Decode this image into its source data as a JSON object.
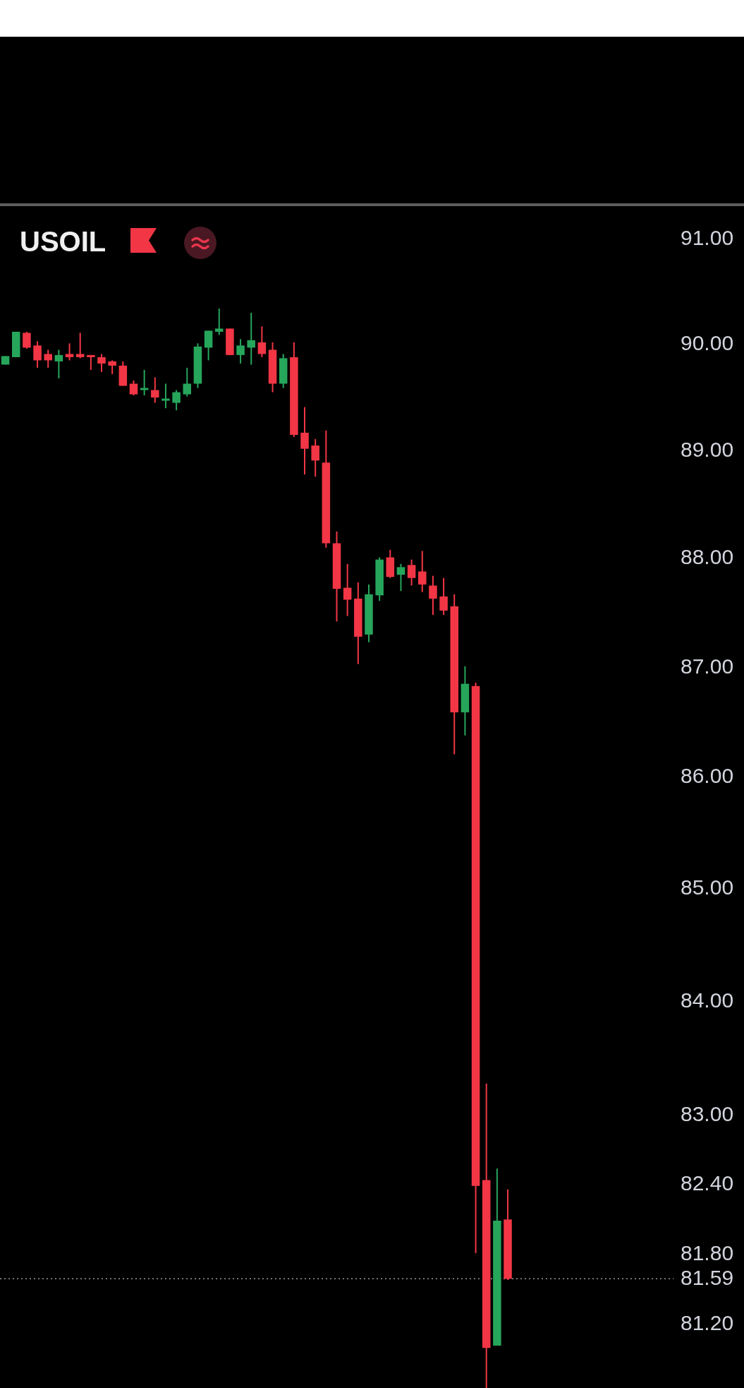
{
  "chart_data": {
    "type": "candlestick",
    "title": "USOIL",
    "categories": [
      null,
      null,
      null,
      null,
      null,
      null,
      null,
      null,
      null,
      null,
      null,
      null,
      null,
      null,
      null,
      null,
      null,
      null,
      null,
      null,
      null,
      null,
      null,
      null,
      null,
      null,
      null,
      null,
      null,
      null,
      null,
      null,
      null,
      null,
      null,
      null,
      null,
      null,
      null,
      null,
      null,
      null,
      null,
      null,
      null,
      null,
      null,
      null,
      null,
      null,
      null,
      null,
      null,
      null,
      null,
      null,
      null,
      null,
      null,
      null,
      null,
      null,
      null
    ],
    "ohlc": [
      [
        89.81,
        89.89,
        89.81,
        89.89
      ],
      [
        89.88,
        90.12,
        89.88,
        90.12
      ],
      [
        90.11,
        90.12,
        89.96,
        89.97
      ],
      [
        89.99,
        90.03,
        89.78,
        89.85
      ],
      [
        89.91,
        89.95,
        89.78,
        89.85
      ],
      [
        89.84,
        89.95,
        89.68,
        89.9
      ],
      [
        89.91,
        90.01,
        89.85,
        89.88
      ],
      [
        89.91,
        90.11,
        89.87,
        89.88
      ],
      [
        89.9,
        89.9,
        89.76,
        89.88
      ],
      [
        89.88,
        89.91,
        89.74,
        89.82
      ],
      [
        89.84,
        89.85,
        89.72,
        89.8
      ],
      [
        89.8,
        89.84,
        89.61,
        89.61
      ],
      [
        89.63,
        89.66,
        89.52,
        89.53
      ],
      [
        89.57,
        89.76,
        89.52,
        89.59
      ],
      [
        89.57,
        89.69,
        89.45,
        89.5
      ],
      [
        89.47,
        89.63,
        89.4,
        89.49
      ],
      [
        89.45,
        89.57,
        89.38,
        89.55
      ],
      [
        89.53,
        89.78,
        89.51,
        89.63
      ],
      [
        89.63,
        90.01,
        89.59,
        89.98
      ],
      [
        89.97,
        90.13,
        89.85,
        90.13
      ],
      [
        90.12,
        90.34,
        90.09,
        90.15
      ],
      [
        90.15,
        90.15,
        89.9,
        89.9
      ],
      [
        89.9,
        90.05,
        89.82,
        89.99
      ],
      [
        89.97,
        90.3,
        89.81,
        90.04
      ],
      [
        90.02,
        90.17,
        89.88,
        89.91
      ],
      [
        89.95,
        90.02,
        89.55,
        89.63
      ],
      [
        89.63,
        89.91,
        89.59,
        89.87
      ],
      [
        89.88,
        90.02,
        89.13,
        89.15
      ],
      [
        89.17,
        89.41,
        88.78,
        89.02
      ],
      [
        89.05,
        89.11,
        88.76,
        88.91
      ],
      [
        88.89,
        89.19,
        88.1,
        88.14
      ],
      [
        88.14,
        88.25,
        87.42,
        87.72
      ],
      [
        87.73,
        87.95,
        87.47,
        87.62
      ],
      [
        87.63,
        87.78,
        87.03,
        87.28
      ],
      [
        87.3,
        87.76,
        87.23,
        87.67
      ],
      [
        87.66,
        88.01,
        87.61,
        87.99
      ],
      [
        88.01,
        88.08,
        87.82,
        87.83
      ],
      [
        87.85,
        87.95,
        87.7,
        87.92
      ],
      [
        87.94,
        87.99,
        87.75,
        87.82
      ],
      [
        87.88,
        88.07,
        87.69,
        87.76
      ],
      [
        87.75,
        87.84,
        87.48,
        87.63
      ],
      [
        87.65,
        87.82,
        87.48,
        87.52
      ],
      [
        87.56,
        87.67,
        86.21,
        86.59
      ],
      [
        86.59,
        87.01,
        86.38,
        86.85
      ],
      [
        86.83,
        86.86,
        81.81,
        82.39
      ],
      [
        82.44,
        83.28,
        80.66,
        81.0
      ],
      [
        81.02,
        82.54,
        81.02,
        82.09
      ],
      [
        82.1,
        82.36,
        81.58,
        81.59
      ],
      null,
      null,
      null,
      null,
      null,
      null,
      null,
      null,
      null,
      null,
      null,
      null,
      null,
      null,
      null
    ],
    "colors": [
      "#26a65b",
      "#26a65b",
      "#f23645",
      "#f23645",
      "#f23645",
      "#26a65b",
      "#f23645",
      "#f23645",
      "#f23645",
      "#f23645",
      "#f23645",
      "#f23645",
      "#f23645",
      "#26a65b",
      "#f23645",
      "#26a65b",
      "#26a65b",
      "#26a65b",
      "#26a65b",
      "#26a65b",
      "#26a65b",
      "#f23645",
      "#26a65b",
      "#26a65b",
      "#f23645",
      "#f23645",
      "#26a65b",
      "#f23645",
      "#f23645",
      "#f23645",
      "#f23645",
      "#f23645",
      "#f23645",
      "#f23645",
      "#26a65b",
      "#26a65b",
      "#f23645",
      "#26a65b",
      "#f23645",
      "#f23645",
      "#f23645",
      "#f23645",
      "#f23645",
      "#26a65b",
      "#f23645",
      "#f23645",
      "#26a65b",
      "#f23645",
      null,
      null,
      null,
      null,
      null,
      null,
      null,
      null,
      null,
      null,
      null,
      null,
      null,
      null,
      null
    ],
    "ylim": [
      80.66,
      91.33
    ],
    "yticks": [
      {
        "value": 91,
        "label": "91.00"
      },
      {
        "value": 90,
        "label": "90.00"
      },
      {
        "value": 89,
        "label": "89.00"
      },
      {
        "value": 88,
        "label": "88.00"
      },
      {
        "value": 87,
        "label": "87.00"
      },
      {
        "value": 86,
        "label": "86.00"
      },
      {
        "value": 85,
        "label": "85.00"
      },
      {
        "value": 84,
        "label": "84.00"
      },
      {
        "value": 83,
        "label": "83.00"
      },
      {
        "value": 82.4,
        "label": "82.40"
      },
      {
        "value": 81.8,
        "label": "81.80"
      },
      {
        "value": 81.2,
        "label": "81.20"
      }
    ],
    "log": true,
    "tick_labels": "y",
    "ref_lines": [
      {
        "axis": "y",
        "value": 81.59,
        "label": "81.59",
        "color": "#9598a1",
        "line_style": "dotted"
      }
    ]
  }
}
